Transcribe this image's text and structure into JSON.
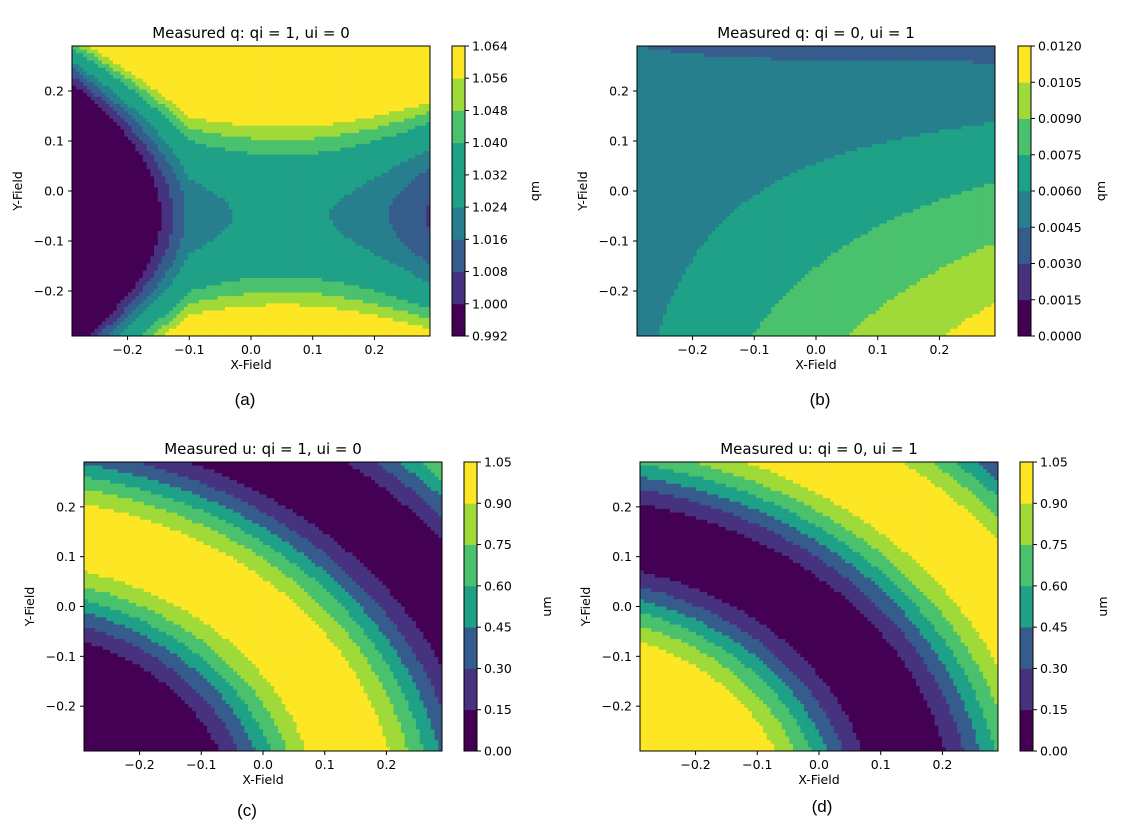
{
  "chart_data": [
    {
      "type": "contour",
      "panel_label": "(a)",
      "title": "Measured q: qi = 1, ui = 0",
      "xlabel": "X-Field",
      "ylabel": "Y-Field",
      "colorbar_label": "qm",
      "xlim": [
        -0.29,
        0.29
      ],
      "ylim": [
        -0.29,
        0.29
      ],
      "xticks": [
        "−0.2",
        "−0.1",
        "0.0",
        "0.1",
        "0.2"
      ],
      "xtick_values": [
        -0.2,
        -0.1,
        0.0,
        0.1,
        0.2
      ],
      "yticks": [
        "0.2",
        "0.1",
        "0.0",
        "−0.1",
        "−0.2"
      ],
      "ytick_values": [
        0.2,
        0.1,
        0.0,
        -0.1,
        -0.2
      ],
      "levels": [
        "0.992",
        "1.000",
        "1.008",
        "1.016",
        "1.024",
        "1.032",
        "1.040",
        "1.048",
        "1.056",
        "1.064"
      ],
      "field": "saddle",
      "field_params": {
        "base": 1.0265,
        "a": 0.42,
        "b": 0.55,
        "cx": 0.05,
        "cy": -0.05
      }
    },
    {
      "type": "contour",
      "panel_label": "(b)",
      "title": "Measured q: qi = 0, ui = 1",
      "xlabel": "X-Field",
      "ylabel": "Y-Field",
      "colorbar_label": "qm",
      "xlim": [
        -0.29,
        0.29
      ],
      "ylim": [
        -0.29,
        0.29
      ],
      "xticks": [
        "−0.2",
        "−0.1",
        "0.0",
        "0.1",
        "0.2"
      ],
      "xtick_values": [
        -0.2,
        -0.1,
        0.0,
        0.1,
        0.2
      ],
      "yticks": [
        "0.2",
        "0.1",
        "0.0",
        "−0.1",
        "−0.2"
      ],
      "ytick_values": [
        0.2,
        0.1,
        0.0,
        -0.1,
        -0.2
      ],
      "levels": [
        "0.0000",
        "0.0015",
        "0.0030",
        "0.0045",
        "0.0060",
        "0.0075",
        "0.0090",
        "0.0105",
        "0.0120"
      ],
      "field": "tilted_plane",
      "field_params": {
        "base": 0.0064,
        "gx": 0.0045,
        "gy": -0.0145,
        "gxy": -0.03
      }
    },
    {
      "type": "contour",
      "panel_label": "(c)",
      "title": "Measured u: qi = 1, ui = 0",
      "xlabel": "X-Field",
      "ylabel": "Y-Field",
      "colorbar_label": "um",
      "xlim": [
        -0.29,
        0.29
      ],
      "ylim": [
        -0.29,
        0.29
      ],
      "xticks": [
        "−0.2",
        "−0.1",
        "0.0",
        "0.1",
        "0.2"
      ],
      "xtick_values": [
        -0.2,
        -0.1,
        0.0,
        0.1,
        0.2
      ],
      "yticks": [
        "0.2",
        "0.1",
        "0.0",
        "−0.1",
        "−0.2"
      ],
      "ytick_values": [
        0.2,
        0.1,
        0.0,
        -0.1,
        -0.2
      ],
      "levels": [
        "0.00",
        "0.15",
        "0.30",
        "0.45",
        "0.60",
        "0.75",
        "0.90",
        "1.05"
      ],
      "field": "sin_rotation",
      "field_params": {
        "ox": -0.43,
        "oy": -0.43,
        "k": 3.3,
        "invert": false
      }
    },
    {
      "type": "contour",
      "panel_label": "(d)",
      "title": "Measured u: qi = 0, ui = 1",
      "xlabel": "X-Field",
      "ylabel": "Y-Field",
      "colorbar_label": "um",
      "xlim": [
        -0.29,
        0.29
      ],
      "ylim": [
        -0.29,
        0.29
      ],
      "xticks": [
        "−0.2",
        "−0.1",
        "0.0",
        "0.1",
        "0.2"
      ],
      "xtick_values": [
        -0.2,
        -0.1,
        0.0,
        0.1,
        0.2
      ],
      "yticks": [
        "0.2",
        "0.1",
        "0.0",
        "−0.1",
        "−0.2"
      ],
      "ytick_values": [
        0.2,
        0.1,
        0.0,
        -0.1,
        -0.2
      ],
      "levels": [
        "0.00",
        "0.15",
        "0.30",
        "0.45",
        "0.60",
        "0.75",
        "0.90",
        "1.05"
      ],
      "field": "sin_rotation",
      "field_params": {
        "ox": -0.43,
        "oy": -0.43,
        "k": 3.3,
        "invert": true
      }
    }
  ],
  "palette": [
    "#440154",
    "#46327e",
    "#365c8d",
    "#277f8e",
    "#1fa187",
    "#4ac16d",
    "#a0da39",
    "#fde725"
  ]
}
